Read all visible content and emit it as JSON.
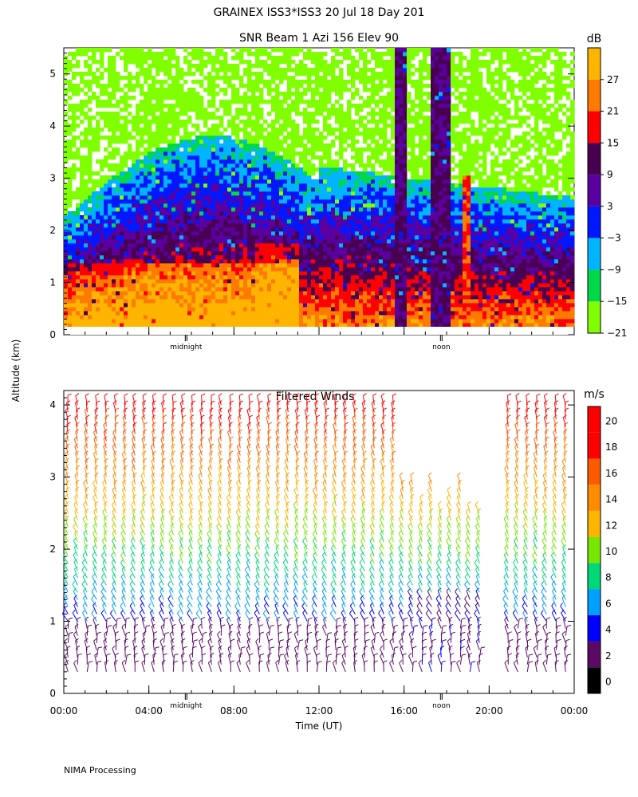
{
  "header": {
    "title": "GRAINEX ISS3*ISS3  20 Jul 18 Day 201"
  },
  "footer": {
    "processing_note": "NIMA Processing"
  },
  "shared": {
    "ylabel": "Altitude (km)"
  },
  "chart_data": [
    {
      "type": "heatmap",
      "title": "SNR Beam 1 Azi 156 Elev 90",
      "ylim": [
        0,
        5.5
      ],
      "yticks": [
        "0",
        "1",
        "2",
        "3",
        "4",
        "5"
      ],
      "xlim": [
        0,
        24
      ],
      "xticks_minor_labels": [
        {
          "x": 5.75,
          "label": "midnight"
        },
        {
          "x": 17.75,
          "label": "noon"
        }
      ],
      "colorbar": {
        "unit": "dB",
        "ticks": [
          "27",
          "21",
          "15",
          "9",
          "3",
          "−3",
          "−9",
          "−15",
          "−21"
        ],
        "colors": [
          "#80ff00",
          "#00d84a",
          "#00b4ff",
          "#0018ff",
          "#5a00a0",
          "#4a0050",
          "#ff0000",
          "#ff7b00",
          "#ffb400"
        ],
        "bounds": [
          -24,
          -18,
          -12,
          -6,
          0,
          6,
          12,
          18,
          24,
          30
        ]
      }
    },
    {
      "type": "barbs",
      "title": "Filtered Winds",
      "xlabel": "Time (UT)",
      "ylim": [
        0,
        4.2
      ],
      "yticks": [
        "0",
        "1",
        "2",
        "3",
        "4"
      ],
      "xlim": [
        0,
        24
      ],
      "xticks": [
        "00:00",
        "04:00",
        "08:00",
        "12:00",
        "16:00",
        "20:00",
        "00:00"
      ],
      "xticks_minor_labels": [
        {
          "x": 5.75,
          "label": "midnight"
        },
        {
          "x": 17.75,
          "label": "noon"
        }
      ],
      "colorbar": {
        "unit": "m/s",
        "ticks": [
          "0",
          "2",
          "4",
          "6",
          "8",
          "10",
          "12",
          "14",
          "16",
          "18",
          "20"
        ],
        "colors": [
          "#000000",
          "#5a0a64",
          "#0000ff",
          "#00a0ff",
          "#00d878",
          "#78e600",
          "#ffb400",
          "#ff8c00",
          "#ff5a00",
          "#ff0000",
          "#ff0000"
        ],
        "bounds": [
          0,
          2,
          4,
          6,
          8,
          10,
          12,
          14,
          16,
          18,
          20,
          22
        ]
      }
    }
  ]
}
